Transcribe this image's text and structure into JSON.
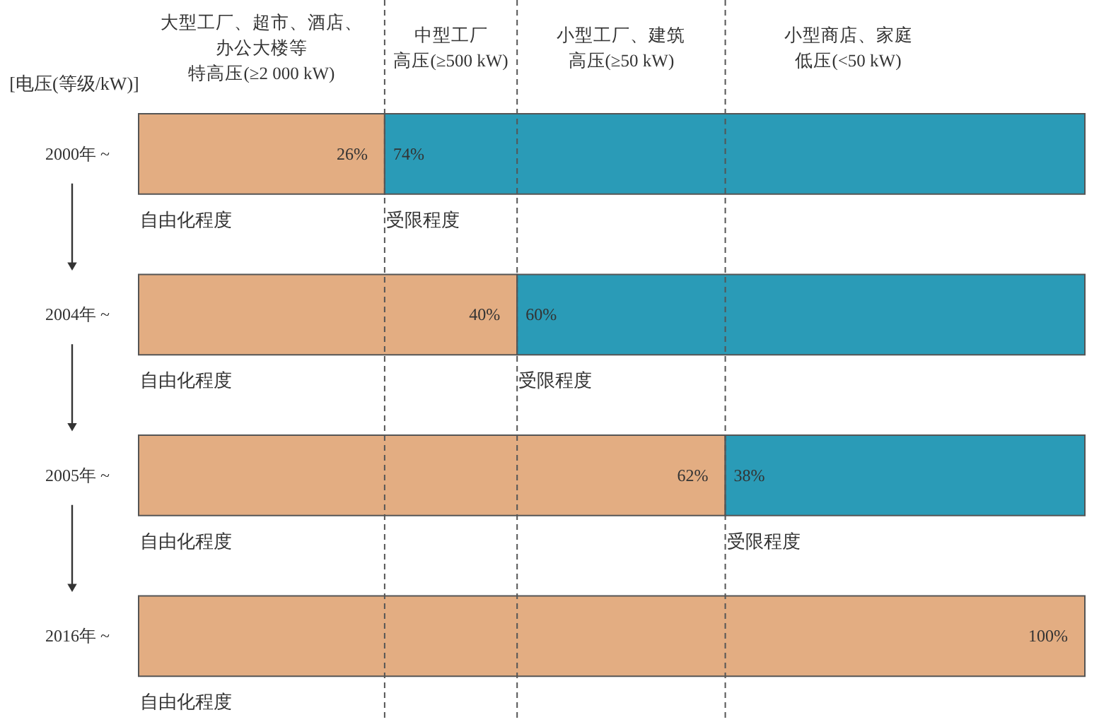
{
  "chart_data": {
    "type": "bar",
    "orientation": "horizontal",
    "stacked": true,
    "tick_labels": "y",
    "ylabel": "[电压(等级/kW)]",
    "categories": [
      "2000年 ~",
      "2004年 ~",
      "2005年 ~",
      "2016年 ~"
    ],
    "series": [
      {
        "name": "自由化程度",
        "color": "#e3ad82",
        "values": [
          26,
          40,
          62,
          100
        ],
        "value_labels": [
          "26%",
          "40%",
          "62%",
          "100%"
        ]
      },
      {
        "name": "受限程度",
        "color": "#2a9bb7",
        "values": [
          74,
          60,
          38,
          null
        ],
        "value_labels": [
          "74%",
          "60%",
          "38%",
          null
        ]
      }
    ],
    "ref_lines": [
      {
        "axis": "x",
        "value": 26,
        "line_style": "dashed",
        "color": "#555555"
      },
      {
        "axis": "x",
        "value": 40,
        "line_style": "dashed",
        "color": "#555555"
      },
      {
        "axis": "x",
        "value": 62,
        "line_style": "dashed",
        "color": "#555555"
      }
    ],
    "annotations": [
      "大型工厂、超市、酒店、办公大楼等",
      "特高压(≥2 000 kW)",
      "中型工厂",
      "高压(≥500 kW)",
      "小型工厂、建筑",
      "高压(≥50 kW)",
      "小型商店、家庭",
      "低压(<50 kW)"
    ]
  }
}
